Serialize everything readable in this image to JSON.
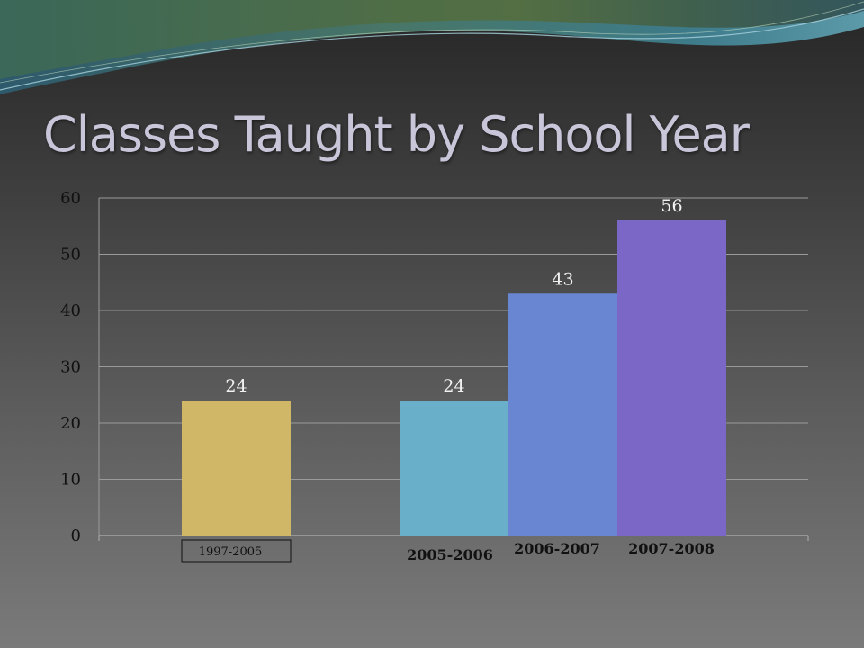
{
  "slide": {
    "title": "Classes Taught by School Year"
  },
  "colors": {
    "background_top": "#262626",
    "background_bottom": "#7a7a7a",
    "title": "#c9c6da",
    "gridline": "#9a9a9a"
  },
  "chart_data": {
    "type": "bar",
    "title": "",
    "xlabel": "",
    "ylabel": "",
    "ylim": [
      0,
      60
    ],
    "yticks": [
      0,
      10,
      20,
      30,
      40,
      50,
      60
    ],
    "grid": true,
    "legend": "none",
    "categories": [
      "1997-2005",
      "2005-2006",
      "2006-2007",
      "2007-2008"
    ],
    "values": [
      24,
      24,
      43,
      56
    ],
    "data_labels": [
      "24",
      "24",
      "43",
      "56"
    ],
    "bar_colors": [
      "#cfb767",
      "#6aafca",
      "#6986d2",
      "#7b68c6"
    ]
  }
}
